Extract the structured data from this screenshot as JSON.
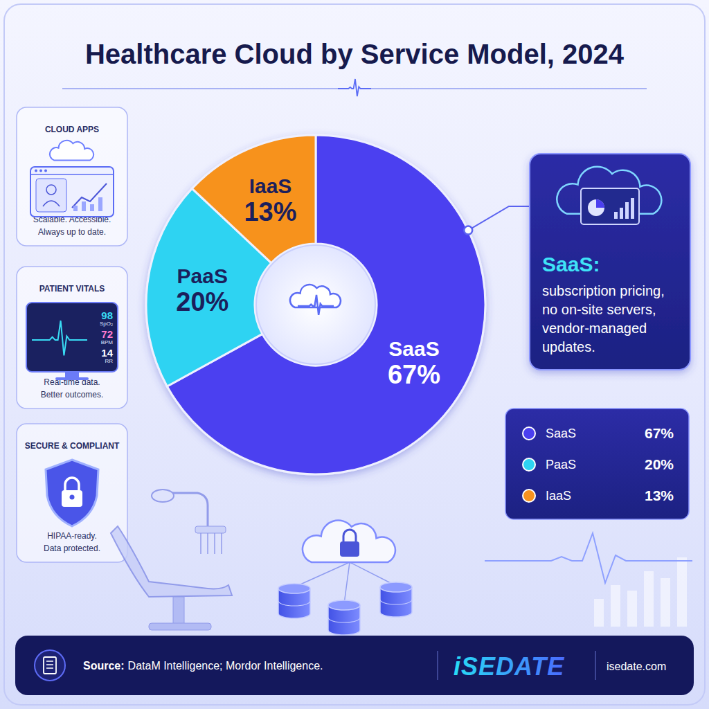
{
  "chart_data": {
    "type": "donut",
    "title": "Healthcare Cloud by Service Model, 2024",
    "categories": [
      "SaaS",
      "PaaS",
      "IaaS"
    ],
    "values": [
      67,
      20,
      13
    ],
    "value_labels": [
      "67%",
      "20%",
      "13%"
    ],
    "colors": [
      "#4b3ff0",
      "#2ed3f2",
      "#f7921e"
    ],
    "data_labels": true,
    "legend": "right"
  },
  "side_panels": [
    {
      "title": "CLOUD APPS",
      "caption": [
        "Scalable. Accessible.",
        "Always up to date."
      ]
    },
    {
      "title": "PATIENT VITALS",
      "caption": [
        "Real-time data.",
        "Better outcomes."
      ]
    },
    {
      "title": "SECURE & COMPLIANT",
      "caption": [
        "HIPAA-ready.",
        "Data protected."
      ]
    }
  ],
  "vitals": [
    {
      "value": 98,
      "label": "SpO₂"
    },
    {
      "value": 72,
      "label": "BPM"
    },
    {
      "value": 14,
      "label": "RR"
    }
  ],
  "callout": {
    "title": "SaaS:",
    "lines": [
      "subscription pricing,",
      "no on-site servers,",
      "vendor-managed",
      "updates."
    ]
  },
  "footer": {
    "source_label": "Source:",
    "source": "DataM Intelligence; Mordor Intelligence.",
    "brand": "iSEDATE",
    "url": "isedate.com"
  }
}
